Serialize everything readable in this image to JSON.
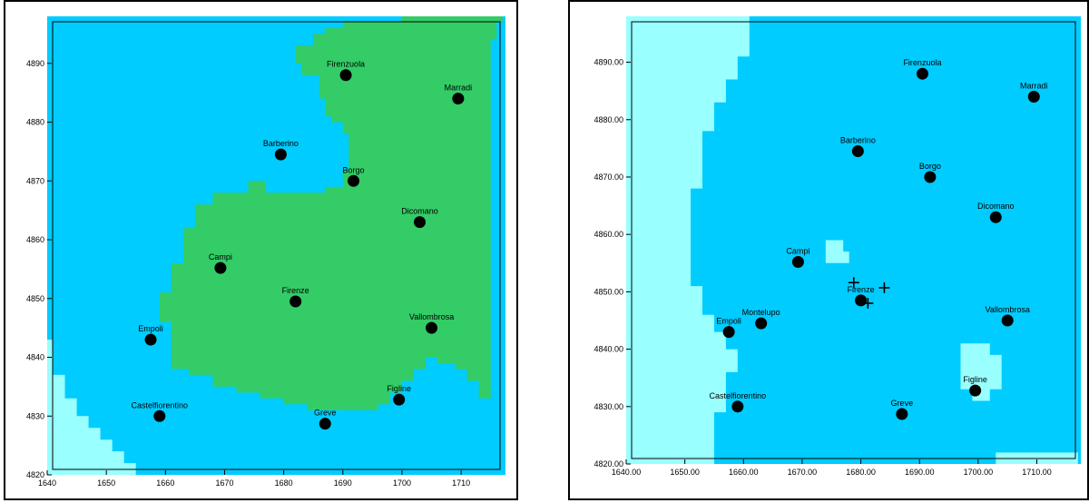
{
  "colors": {
    "water": "#00ccff",
    "light": "#99ffff",
    "green": "#33cc66",
    "point": "#000000"
  },
  "maps": [
    {
      "id": "left",
      "axes": {
        "x_ticks": [
          "1640",
          "1650",
          "1660",
          "1670",
          "1680",
          "1690",
          "1700",
          "1710"
        ],
        "y_ticks": [
          "4820",
          "4830",
          "4840",
          "4850",
          "4860",
          "4870",
          "4880",
          "4890"
        ]
      },
      "regions": [
        {
          "class": "green",
          "points": [
            [
              1700,
              4898
            ],
            [
              1717,
              4898
            ],
            [
              1717,
              4897
            ],
            [
              1716,
              4897
            ],
            [
              1716,
              4894
            ],
            [
              1715,
              4894
            ],
            [
              1715,
              4833
            ],
            [
              1713,
              4833
            ],
            [
              1713,
              4836
            ],
            [
              1711,
              4836
            ],
            [
              1711,
              4838
            ],
            [
              1709,
              4838
            ],
            [
              1709,
              4839
            ],
            [
              1706,
              4839
            ],
            [
              1706,
              4840
            ],
            [
              1704,
              4840
            ],
            [
              1704,
              4838
            ],
            [
              1702,
              4838
            ],
            [
              1702,
              4836
            ],
            [
              1700,
              4836
            ],
            [
              1700,
              4834
            ],
            [
              1698,
              4834
            ],
            [
              1698,
              4832
            ],
            [
              1696,
              4832
            ],
            [
              1696,
              4831
            ],
            [
              1684,
              4831
            ],
            [
              1684,
              4832
            ],
            [
              1680,
              4832
            ],
            [
              1680,
              4833
            ],
            [
              1676,
              4833
            ],
            [
              1676,
              4834
            ],
            [
              1672,
              4834
            ],
            [
              1672,
              4835
            ],
            [
              1668,
              4835
            ],
            [
              1668,
              4837
            ],
            [
              1664,
              4837
            ],
            [
              1664,
              4838
            ],
            [
              1661,
              4838
            ],
            [
              1661,
              4846
            ],
            [
              1659,
              4846
            ],
            [
              1659,
              4851
            ],
            [
              1661,
              4851
            ],
            [
              1661,
              4856
            ],
            [
              1663,
              4856
            ],
            [
              1663,
              4862
            ],
            [
              1665,
              4862
            ],
            [
              1665,
              4866
            ],
            [
              1668,
              4866
            ],
            [
              1668,
              4868
            ],
            [
              1674,
              4868
            ],
            [
              1674,
              4870
            ],
            [
              1677,
              4870
            ],
            [
              1677,
              4868
            ],
            [
              1687,
              4868
            ],
            [
              1687,
              4869
            ],
            [
              1690,
              4869
            ],
            [
              1690,
              4872
            ],
            [
              1691,
              4872
            ],
            [
              1691,
              4878
            ],
            [
              1690,
              4878
            ],
            [
              1690,
              4880
            ],
            [
              1688,
              4880
            ],
            [
              1688,
              4881
            ],
            [
              1687,
              4881
            ],
            [
              1687,
              4884
            ],
            [
              1686,
              4884
            ],
            [
              1686,
              4888
            ],
            [
              1683,
              4888
            ],
            [
              1683,
              4890
            ],
            [
              1682,
              4890
            ],
            [
              1682,
              4893
            ],
            [
              1685,
              4893
            ],
            [
              1685,
              4895
            ],
            [
              1687,
              4895
            ],
            [
              1687,
              4896
            ],
            [
              1690,
              4896
            ],
            [
              1690,
              4897
            ],
            [
              1700,
              4897
            ]
          ]
        },
        {
          "class": "light",
          "points": [
            [
              1640,
              4820
            ],
            [
              1640,
              4843
            ],
            [
              1641,
              4843
            ],
            [
              1641,
              4837
            ],
            [
              1643,
              4837
            ],
            [
              1643,
              4833
            ],
            [
              1645,
              4833
            ],
            [
              1645,
              4830
            ],
            [
              1647,
              4830
            ],
            [
              1647,
              4828
            ],
            [
              1649,
              4828
            ],
            [
              1649,
              4826
            ],
            [
              1651,
              4826
            ],
            [
              1651,
              4824
            ],
            [
              1653,
              4824
            ],
            [
              1653,
              4822
            ],
            [
              1655,
              4822
            ],
            [
              1655,
              4820
            ]
          ]
        }
      ],
      "cities": [
        {
          "name": "Firenzuola",
          "x": 1690.5,
          "y": 4888.0
        },
        {
          "name": "Marradi",
          "x": 1709.5,
          "y": 4884.0
        },
        {
          "name": "Barberino",
          "x": 1679.5,
          "y": 4874.5
        },
        {
          "name": "Borgo",
          "x": 1691.8,
          "y": 4870.0
        },
        {
          "name": "Dicomano",
          "x": 1703.0,
          "y": 4863.0
        },
        {
          "name": "Campi",
          "x": 1669.3,
          "y": 4855.2
        },
        {
          "name": "Firenze",
          "x": 1682.0,
          "y": 4849.5
        },
        {
          "name": "Vallombrosa",
          "x": 1705.0,
          "y": 4845.0
        },
        {
          "name": "Empoli",
          "x": 1657.5,
          "y": 4843.0
        },
        {
          "name": "Figline",
          "x": 1699.5,
          "y": 4832.8
        },
        {
          "name": "Castelfiorentino",
          "x": 1659.0,
          "y": 4830.0
        },
        {
          "name": "Greve",
          "x": 1687.0,
          "y": 4828.7
        }
      ],
      "crosses": []
    },
    {
      "id": "right",
      "axes": {
        "x_ticks": [
          "1640.00",
          "1650.00",
          "1660.00",
          "1670.00",
          "1680.00",
          "1690.00",
          "1700.00",
          "1710.00"
        ],
        "y_ticks": [
          "4820.00",
          "4830.00",
          "4840.00",
          "4850.00",
          "4860.00",
          "4870.00",
          "4880.00",
          "4890.00"
        ]
      },
      "regions": [
        {
          "class": "light",
          "points": [
            [
              1640,
              4820
            ],
            [
              1640,
              4898
            ],
            [
              1661,
              4898
            ],
            [
              1661,
              4891
            ],
            [
              1659,
              4891
            ],
            [
              1659,
              4887
            ],
            [
              1657,
              4887
            ],
            [
              1657,
              4883
            ],
            [
              1655,
              4883
            ],
            [
              1655,
              4878
            ],
            [
              1653,
              4878
            ],
            [
              1653,
              4868
            ],
            [
              1651,
              4868
            ],
            [
              1651,
              4851
            ],
            [
              1653,
              4851
            ],
            [
              1653,
              4846
            ],
            [
              1655,
              4846
            ],
            [
              1655,
              4843
            ],
            [
              1657,
              4843
            ],
            [
              1657,
              4840
            ],
            [
              1659,
              4840
            ],
            [
              1659,
              4836
            ],
            [
              1657,
              4836
            ],
            [
              1657,
              4829
            ],
            [
              1655,
              4829
            ],
            [
              1655,
              4820
            ]
          ]
        },
        {
          "class": "light",
          "points": [
            [
              1674,
              4855
            ],
            [
              1674,
              4859
            ],
            [
              1677,
              4859
            ],
            [
              1677,
              4857
            ],
            [
              1678,
              4857
            ],
            [
              1678,
              4855
            ]
          ]
        },
        {
          "class": "light",
          "points": [
            [
              1697,
              4833
            ],
            [
              1697,
              4841
            ],
            [
              1702,
              4841
            ],
            [
              1702,
              4839
            ],
            [
              1704,
              4839
            ],
            [
              1704,
              4833
            ],
            [
              1702,
              4833
            ],
            [
              1702,
              4831
            ],
            [
              1699,
              4831
            ],
            [
              1699,
              4833
            ]
          ]
        },
        {
          "class": "light",
          "points": [
            [
              1703,
              4820
            ],
            [
              1703,
              4822
            ],
            [
              1717,
              4822
            ],
            [
              1717,
              4820
            ]
          ]
        }
      ],
      "cities": [
        {
          "name": "Firenzuola",
          "x": 1690.5,
          "y": 4888.0
        },
        {
          "name": "Marradi",
          "x": 1709.5,
          "y": 4884.0
        },
        {
          "name": "Barberino",
          "x": 1679.5,
          "y": 4874.5
        },
        {
          "name": "Borgo",
          "x": 1691.8,
          "y": 4870.0
        },
        {
          "name": "Dicomano",
          "x": 1703.0,
          "y": 4863.0
        },
        {
          "name": "Campi",
          "x": 1669.3,
          "y": 4855.2
        },
        {
          "name": "Firenze",
          "x": 1680.0,
          "y": 4848.5
        },
        {
          "name": "Vallombrosa",
          "x": 1705.0,
          "y": 4845.0
        },
        {
          "name": "Montelupo",
          "x": 1663.0,
          "y": 4844.5
        },
        {
          "name": "Empoli",
          "x": 1657.5,
          "y": 4843.0
        },
        {
          "name": "Figline",
          "x": 1699.5,
          "y": 4832.8
        },
        {
          "name": "Castelfiorentino",
          "x": 1659.0,
          "y": 4830.0
        },
        {
          "name": "Greve",
          "x": 1687.0,
          "y": 4828.7
        }
      ],
      "crosses": [
        {
          "x": 1678.8,
          "y": 4851.6
        },
        {
          "x": 1684.0,
          "y": 4850.7
        },
        {
          "x": 1681.2,
          "y": 4848.0
        }
      ]
    }
  ]
}
